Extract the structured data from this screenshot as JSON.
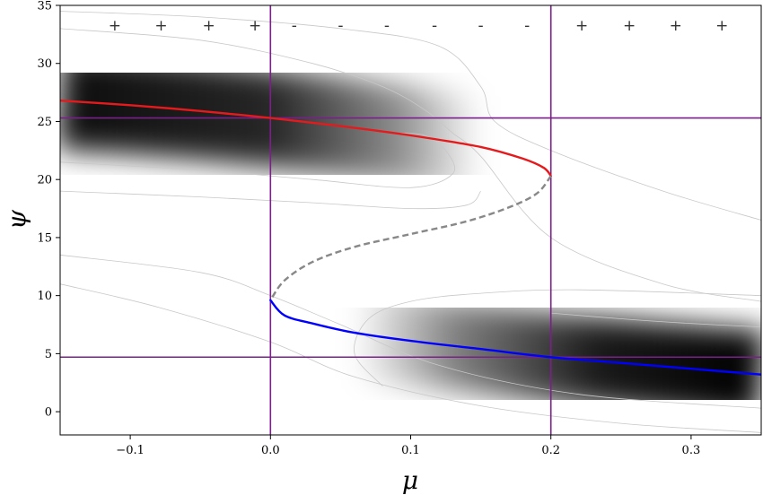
{
  "chart_data": {
    "type": "line",
    "xlabel": "μ",
    "ylabel": "ψ",
    "xlim": [
      -0.15,
      0.35
    ],
    "ylim": [
      -2,
      35
    ],
    "x_ticks": [
      -0.1,
      0.0,
      0.1,
      0.2,
      0.3
    ],
    "x_tick_labels": [
      "−0.1",
      "0.0",
      "0.1",
      "0.2",
      "0.3"
    ],
    "y_ticks": [
      0,
      5,
      10,
      15,
      20,
      25,
      30,
      35
    ],
    "y_tick_labels": [
      "0",
      "5",
      "10",
      "15",
      "20",
      "25",
      "30",
      "35"
    ],
    "grid": false,
    "colors": {
      "upper": "#e41a1c",
      "lower": "#0000ff",
      "unstable": "#888888",
      "reference": "#7b1f8a",
      "contour": "#c8c8c8"
    },
    "series": [
      {
        "style": "solid",
        "color": "#e41a1c",
        "x": [
          -0.15,
          -0.1,
          -0.05,
          0.0,
          0.05,
          0.1,
          0.15,
          0.18,
          0.195,
          0.2
        ],
        "y": [
          26.8,
          26.4,
          25.9,
          25.3,
          24.6,
          23.8,
          22.8,
          21.8,
          21.0,
          20.3
        ]
      },
      {
        "style": "dashed",
        "color": "#888888",
        "x": [
          0.2,
          0.19,
          0.17,
          0.14,
          0.1,
          0.06,
          0.03,
          0.01,
          0.0
        ],
        "y": [
          20.3,
          18.8,
          17.6,
          16.4,
          15.3,
          14.2,
          12.9,
          11.3,
          9.6
        ]
      },
      {
        "style": "solid",
        "color": "#0000ff",
        "x": [
          0.0,
          0.01,
          0.03,
          0.06,
          0.1,
          0.15,
          0.2,
          0.25,
          0.3,
          0.35
        ],
        "y": [
          9.6,
          8.3,
          7.6,
          6.8,
          6.1,
          5.4,
          4.7,
          4.2,
          3.7,
          3.2
        ]
      }
    ],
    "reference_lines": {
      "vertical": [
        0.0,
        0.2
      ],
      "horizontal": [
        25.3,
        4.7
      ]
    },
    "sign_markers": [
      {
        "x": -0.111,
        "text": "+"
      },
      {
        "x": -0.078,
        "text": "+"
      },
      {
        "x": -0.044,
        "text": "+"
      },
      {
        "x": -0.011,
        "text": "+"
      },
      {
        "x": 0.017,
        "text": "-"
      },
      {
        "x": 0.05,
        "text": "-"
      },
      {
        "x": 0.083,
        "text": "-"
      },
      {
        "x": 0.117,
        "text": "-"
      },
      {
        "x": 0.15,
        "text": "-"
      },
      {
        "x": 0.183,
        "text": "-"
      },
      {
        "x": 0.222,
        "text": "+"
      },
      {
        "x": 0.256,
        "text": "+"
      },
      {
        "x": 0.289,
        "text": "+"
      },
      {
        "x": 0.322,
        "text": "+"
      }
    ],
    "sign_marker_y": 33.3,
    "background": {
      "type": "heatmap",
      "colormap": "white-to-black",
      "bands": [
        {
          "along": "upper",
          "x_range": [
            -0.15,
            0.15
          ],
          "width": 4.2,
          "peak_at": "left"
        },
        {
          "along": "lower",
          "x_range": [
            0.06,
            0.35
          ],
          "width": 3.8,
          "peak_at": "right"
        }
      ]
    },
    "contours": [
      {
        "x": [
          -0.15,
          -0.05,
          0.05,
          0.12,
          0.15,
          0.16,
          0.2,
          0.28,
          0.35
        ],
        "y": [
          34.5,
          34.0,
          33.0,
          31.5,
          28.0,
          25.0,
          22.5,
          19.0,
          16.5
        ]
      },
      {
        "x": [
          -0.15,
          -0.05,
          0.03,
          0.08,
          0.11,
          0.13,
          0.15,
          0.2,
          0.28,
          0.35
        ],
        "y": [
          33.0,
          32.0,
          30.0,
          28.0,
          26.0,
          24.0,
          22.0,
          15.0,
          11.0,
          9.5
        ]
      },
      {
        "x": [
          -0.15,
          -0.05,
          0.03,
          0.1,
          0.13,
          0.125,
          0.11,
          0.09
        ],
        "y": [
          21.5,
          20.8,
          20.0,
          19.3,
          20.5,
          22.5,
          23.8,
          24.0
        ]
      },
      {
        "x": [
          -0.15,
          -0.05,
          0.03,
          0.1,
          0.14,
          0.15
        ],
        "y": [
          19.0,
          18.5,
          18.0,
          17.5,
          17.8,
          19.0
        ]
      },
      {
        "x": [
          -0.15,
          -0.05,
          0.0,
          0.05,
          0.12,
          0.22,
          0.35
        ],
        "y": [
          13.5,
          12.0,
          10.0,
          7.5,
          4.0,
          1.5,
          0.3
        ]
      },
      {
        "x": [
          -0.15,
          -0.08,
          0.0,
          0.06,
          0.15,
          0.25,
          0.35
        ],
        "y": [
          11.0,
          9.0,
          6.0,
          3.0,
          0.5,
          -1.0,
          -1.8
        ]
      },
      {
        "x": [
          0.08,
          0.06,
          0.07,
          0.1,
          0.15,
          0.22,
          0.35
        ],
        "y": [
          2.2,
          5.0,
          8.0,
          9.5,
          10.2,
          10.5,
          10.0
        ]
      },
      {
        "x": [
          0.2,
          0.25,
          0.3,
          0.35
        ],
        "y": [
          8.5,
          8.0,
          7.6,
          7.3
        ]
      }
    ]
  }
}
